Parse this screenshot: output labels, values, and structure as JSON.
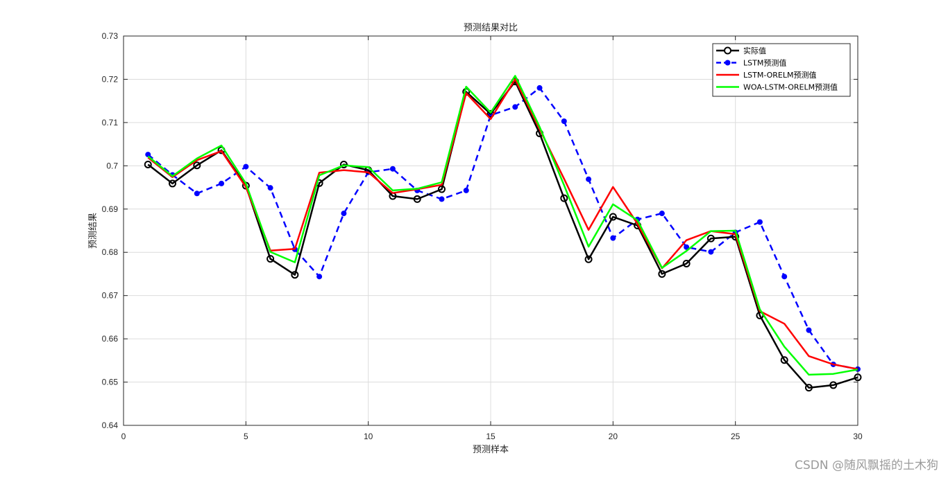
{
  "chart_data": {
    "type": "line",
    "title": "预测结果对比",
    "xlabel": "预测样本",
    "ylabel": "预测结果",
    "xlim": [
      0,
      30
    ],
    "ylim": [
      0.64,
      0.73
    ],
    "xticks": [
      0,
      5,
      10,
      15,
      20,
      25,
      30
    ],
    "yticks": [
      0.64,
      0.65,
      0.66,
      0.67,
      0.68,
      0.69,
      0.7,
      0.71,
      0.72,
      0.73
    ],
    "ytick_labels": [
      "0.64",
      "0.65",
      "0.66",
      "0.67",
      "0.68",
      "0.69",
      "0.7",
      "0.71",
      "0.72",
      "0.73"
    ],
    "grid": true,
    "legend_position": "top-right",
    "x": [
      1,
      2,
      3,
      4,
      5,
      6,
      7,
      8,
      9,
      10,
      11,
      12,
      13,
      14,
      15,
      16,
      17,
      18,
      19,
      20,
      21,
      22,
      23,
      24,
      25,
      26,
      27,
      28,
      29,
      30
    ],
    "series": [
      {
        "name": "实际值",
        "color": "#000000",
        "style": "solid-circle-markers",
        "values": [
          0.7003,
          0.6959,
          0.7001,
          0.7036,
          0.6954,
          0.6785,
          0.6748,
          0.696,
          0.7003,
          0.699,
          0.693,
          0.6923,
          0.6946,
          0.7171,
          0.712,
          0.7195,
          0.7075,
          0.6925,
          0.6784,
          0.6882,
          0.6862,
          0.675,
          0.6774,
          0.6832,
          0.6836,
          0.6654,
          0.6551,
          0.6487,
          0.6493,
          0.6511
        ]
      },
      {
        "name": "LSTM预测值",
        "color": "#0000ff",
        "style": "dashed-dot-markers",
        "values": [
          0.7026,
          0.6979,
          0.6936,
          0.6959,
          0.6998,
          0.6949,
          0.6807,
          0.6744,
          0.689,
          0.6985,
          0.6993,
          0.6943,
          0.6923,
          0.6943,
          0.7117,
          0.7136,
          0.718,
          0.7103,
          0.6969,
          0.6833,
          0.6876,
          0.689,
          0.6812,
          0.6801,
          0.6846,
          0.687,
          0.6744,
          0.662,
          0.6541,
          0.653
        ]
      },
      {
        "name": "LSTM-ORELM预测值",
        "color": "#ff0000",
        "style": "solid",
        "values": [
          0.7019,
          0.6974,
          0.7013,
          0.7034,
          0.6951,
          0.6804,
          0.6808,
          0.6984,
          0.699,
          0.6985,
          0.6937,
          0.6946,
          0.6956,
          0.7168,
          0.7108,
          0.72,
          0.7085,
          0.697,
          0.6852,
          0.6951,
          0.6866,
          0.6763,
          0.6828,
          0.6849,
          0.6842,
          0.6664,
          0.6635,
          0.656,
          0.6541,
          0.653
        ]
      },
      {
        "name": "WOA-LSTM-ORELM预测值",
        "color": "#00ff00",
        "style": "solid",
        "values": [
          0.7022,
          0.6976,
          0.7017,
          0.7047,
          0.6959,
          0.6801,
          0.6777,
          0.6978,
          0.7001,
          0.6997,
          0.6943,
          0.6947,
          0.6962,
          0.7183,
          0.7123,
          0.7208,
          0.709,
          0.6955,
          0.6813,
          0.6911,
          0.6874,
          0.6764,
          0.6803,
          0.6849,
          0.685,
          0.6668,
          0.6582,
          0.6517,
          0.6519,
          0.6529
        ]
      }
    ]
  },
  "watermark": "CSDN @随风飘摇的土木狗"
}
